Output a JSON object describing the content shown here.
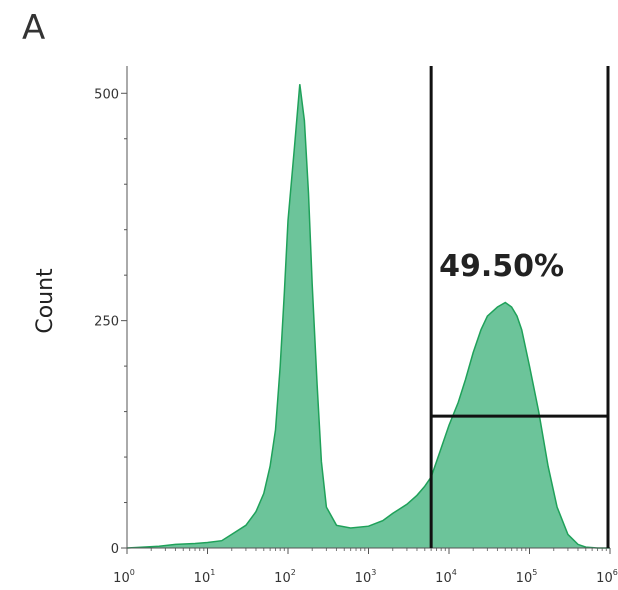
{
  "panel_label": "A",
  "chart_data": {
    "type": "area",
    "title": "",
    "xlabel": "",
    "ylabel": "Count",
    "xscale": "log",
    "xlim": [
      1,
      1000000
    ],
    "ylim": [
      0,
      530
    ],
    "x_tick_labels": [
      {
        "base": "10",
        "exp": "0",
        "value": 1
      },
      {
        "base": "10",
        "exp": "1",
        "value": 10
      },
      {
        "base": "10",
        "exp": "2",
        "value": 100
      },
      {
        "base": "10",
        "exp": "3",
        "value": 1000
      },
      {
        "base": "10",
        "exp": "4",
        "value": 10000
      },
      {
        "base": "10",
        "exp": "5",
        "value": 100000
      },
      {
        "base": "10",
        "exp": "6",
        "value": 1000000
      }
    ],
    "y_ticks": [
      0,
      250,
      500
    ],
    "y_tick_labels": [
      "0",
      "250",
      "500"
    ],
    "grid": false,
    "fill_color": "#6cc49a",
    "line_color": "#1fa15a",
    "histogram": {
      "x": [
        1,
        2.5,
        4,
        7,
        10,
        15,
        20,
        30,
        40,
        50,
        60,
        70,
        80,
        90,
        100,
        120,
        140,
        160,
        180,
        200,
        230,
        260,
        300,
        400,
        600,
        1000,
        1500,
        2000,
        3000,
        4000,
        5000,
        6000,
        7000,
        8000,
        10000,
        13000,
        16000,
        20000,
        25000,
        30000,
        40000,
        50000,
        60000,
        70000,
        80000,
        100000,
        130000,
        170000,
        220000,
        300000,
        400000,
        500000,
        700000,
        1000000
      ],
      "y": [
        0,
        2,
        4,
        5,
        6,
        8,
        15,
        25,
        40,
        60,
        90,
        130,
        200,
        280,
        360,
        440,
        510,
        470,
        390,
        290,
        180,
        95,
        45,
        25,
        22,
        24,
        30,
        38,
        48,
        58,
        68,
        78,
        95,
        110,
        135,
        160,
        185,
        215,
        240,
        255,
        265,
        270,
        265,
        255,
        240,
        200,
        150,
        90,
        45,
        15,
        4,
        1,
        0,
        0
      ]
    },
    "gate": {
      "x_start": 6000,
      "x_end": 1000000,
      "y_level": 145,
      "label": "49.50%"
    }
  }
}
